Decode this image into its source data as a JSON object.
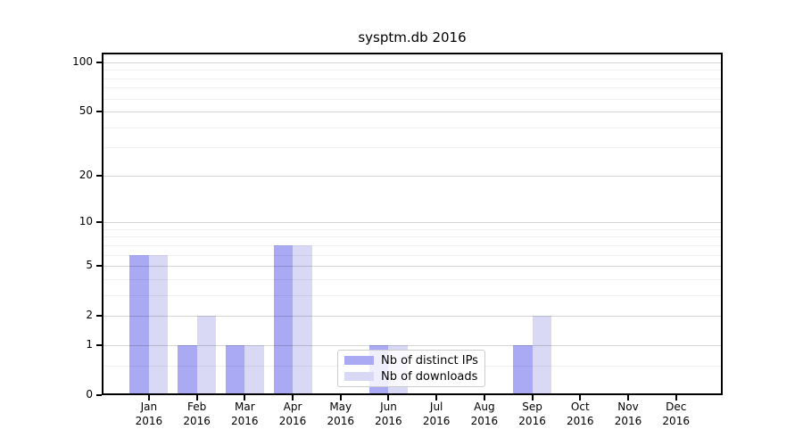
{
  "chart_data": {
    "type": "bar",
    "title": "sysptm.db 2016",
    "categories": [
      "Jan 2016",
      "Feb 2016",
      "Mar 2016",
      "Apr 2016",
      "May 2016",
      "Jun 2016",
      "Jul 2016",
      "Aug 2016",
      "Sep 2016",
      "Oct 2016",
      "Nov 2016",
      "Dec 2016"
    ],
    "series": [
      {
        "name": "Nb of distinct IPs",
        "color": "#a9a9f4",
        "values": [
          6,
          1,
          1,
          7,
          0,
          1,
          0,
          0,
          1,
          0,
          0,
          0
        ]
      },
      {
        "name": "Nb of downloads",
        "color": "#d9d9f6",
        "values": [
          6,
          2,
          1,
          7,
          0,
          1,
          0,
          0,
          2,
          0,
          0,
          0
        ]
      }
    ],
    "xlabel": "",
    "ylabel": "",
    "y_scale": "log1p",
    "ylim": [
      0,
      115
    ],
    "y_ticks": [
      0,
      1,
      2,
      5,
      10,
      20,
      50,
      100
    ],
    "y_minor_gridlines": [
      0.5,
      3,
      4,
      6,
      7,
      8,
      9,
      30,
      40,
      60,
      70,
      80,
      90,
      110
    ],
    "grid": true,
    "legend_position": "lower center"
  },
  "colors": {
    "background": "#ffffff",
    "spine": "#000000",
    "major_grid": "#d7d7d7",
    "minor_grid": "#efefef",
    "legend_border": "#cccccc"
  }
}
